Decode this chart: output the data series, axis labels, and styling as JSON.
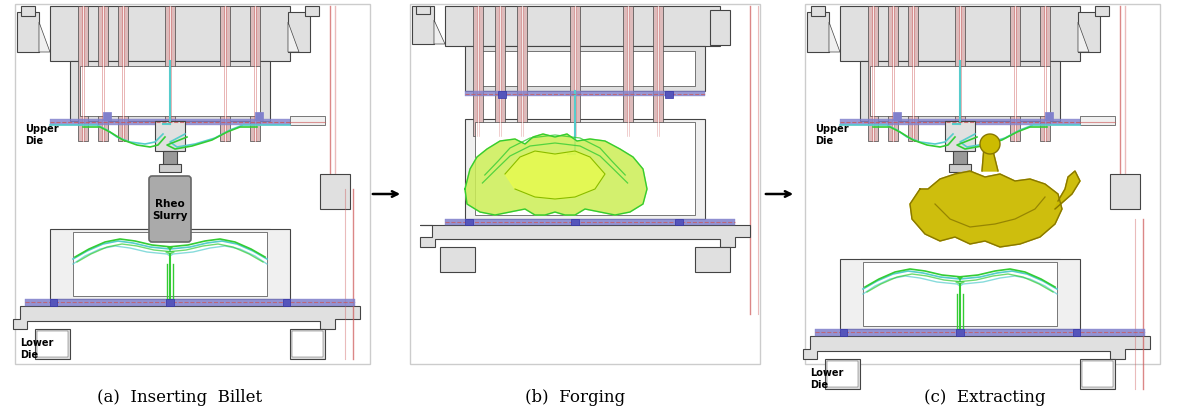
{
  "panel_labels": [
    "(a)  Inserting  Billet",
    "(b)  Forging",
    "(c)  Extracting"
  ],
  "upper_die_label": "Upper\nDie",
  "lower_die_label": "Lower\nDie",
  "rheo_slurry_label": "Rheo\nSlurry",
  "arrow_color": "#111111",
  "bg_color": "#ffffff",
  "die_body_color": "#e0e0e0",
  "die_edge_color": "#444444",
  "blue_stripe_color": "#8080cc",
  "red_line_color": "#cc5555",
  "cyan_line_color": "#55cccc",
  "green_line_color": "#33cc33",
  "pink_rod_color": "#ddbbbb",
  "slurry_color": "#aaaaaa",
  "slurry_edge_color": "#666666",
  "forged_color": "#ccbb00",
  "forged_edge_color": "#887700",
  "dark_rod_color": "#888888",
  "white_fill": "#ffffff",
  "light_gray": "#f0f0f0",
  "mid_gray": "#cccccc"
}
